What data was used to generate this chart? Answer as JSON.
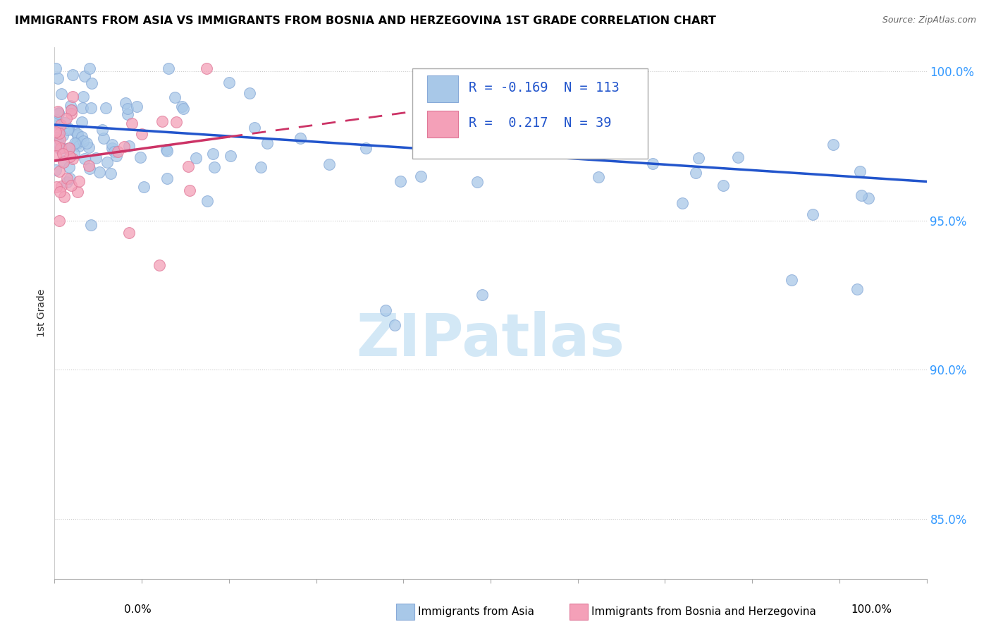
{
  "title": "IMMIGRANTS FROM ASIA VS IMMIGRANTS FROM BOSNIA AND HERZEGOVINA 1ST GRADE CORRELATION CHART",
  "source": "Source: ZipAtlas.com",
  "ylabel": "1st Grade",
  "legend_blue_R": "-0.169",
  "legend_blue_N": "113",
  "legend_pink_R": "0.217",
  "legend_pink_N": "39",
  "blue_color": "#a8c8e8",
  "pink_color": "#f4a0b8",
  "blue_line_color": "#2255cc",
  "pink_line_color": "#cc3366",
  "watermark_color": "#cce4f5",
  "watermark_text": "ZIPatlas",
  "xlim": [
    0.0,
    1.0
  ],
  "ylim": [
    0.83,
    1.008
  ],
  "yticks": [
    0.85,
    0.9,
    0.95,
    1.0
  ],
  "ytick_labels": [
    "85.0%",
    "90.0%",
    "95.0%",
    "100.0%"
  ],
  "blue_trend_x0": 0.0,
  "blue_trend_y0": 0.982,
  "blue_trend_x1": 1.0,
  "blue_trend_y1": 0.963,
  "pink_trend_x0": 0.0,
  "pink_trend_y0": 0.97,
  "pink_trend_x1_solid": 0.2,
  "pink_trend_y1_solid": 0.978,
  "pink_trend_x1_dash": 0.52,
  "pink_trend_y1_dash": 0.988
}
